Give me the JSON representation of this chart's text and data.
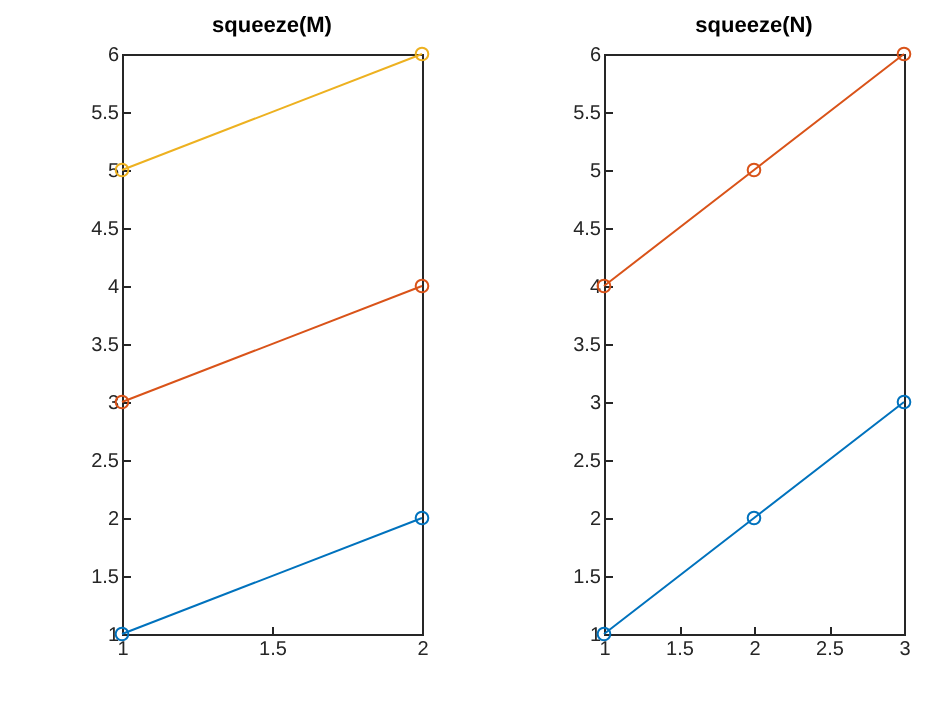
{
  "chart_data": [
    {
      "type": "line",
      "title": "squeeze(M)",
      "x": [
        1,
        2
      ],
      "xlim": [
        1,
        2
      ],
      "xticks": [
        1,
        1.5,
        2
      ],
      "ylim": [
        1,
        6
      ],
      "yticks": [
        1,
        1.5,
        2,
        2.5,
        3,
        3.5,
        4,
        4.5,
        5,
        5.5,
        6
      ],
      "marker": "circle",
      "grid": false,
      "legend": false,
      "series": [
        {
          "color": "#0072bd",
          "values": [
            1,
            2
          ]
        },
        {
          "color": "#d95319",
          "values": [
            3,
            4
          ]
        },
        {
          "color": "#edb120",
          "values": [
            5,
            6
          ]
        }
      ]
    },
    {
      "type": "line",
      "title": "squeeze(N)",
      "x": [
        1,
        2,
        3
      ],
      "xlim": [
        1,
        3
      ],
      "xticks": [
        1,
        1.5,
        2,
        2.5,
        3
      ],
      "ylim": [
        1,
        6
      ],
      "yticks": [
        1,
        1.5,
        2,
        2.5,
        3,
        3.5,
        4,
        4.5,
        5,
        5.5,
        6
      ],
      "marker": "circle",
      "grid": false,
      "legend": false,
      "series": [
        {
          "color": "#0072bd",
          "values": [
            1,
            2,
            3
          ]
        },
        {
          "color": "#d95319",
          "values": [
            4,
            5,
            6
          ]
        }
      ]
    }
  ]
}
